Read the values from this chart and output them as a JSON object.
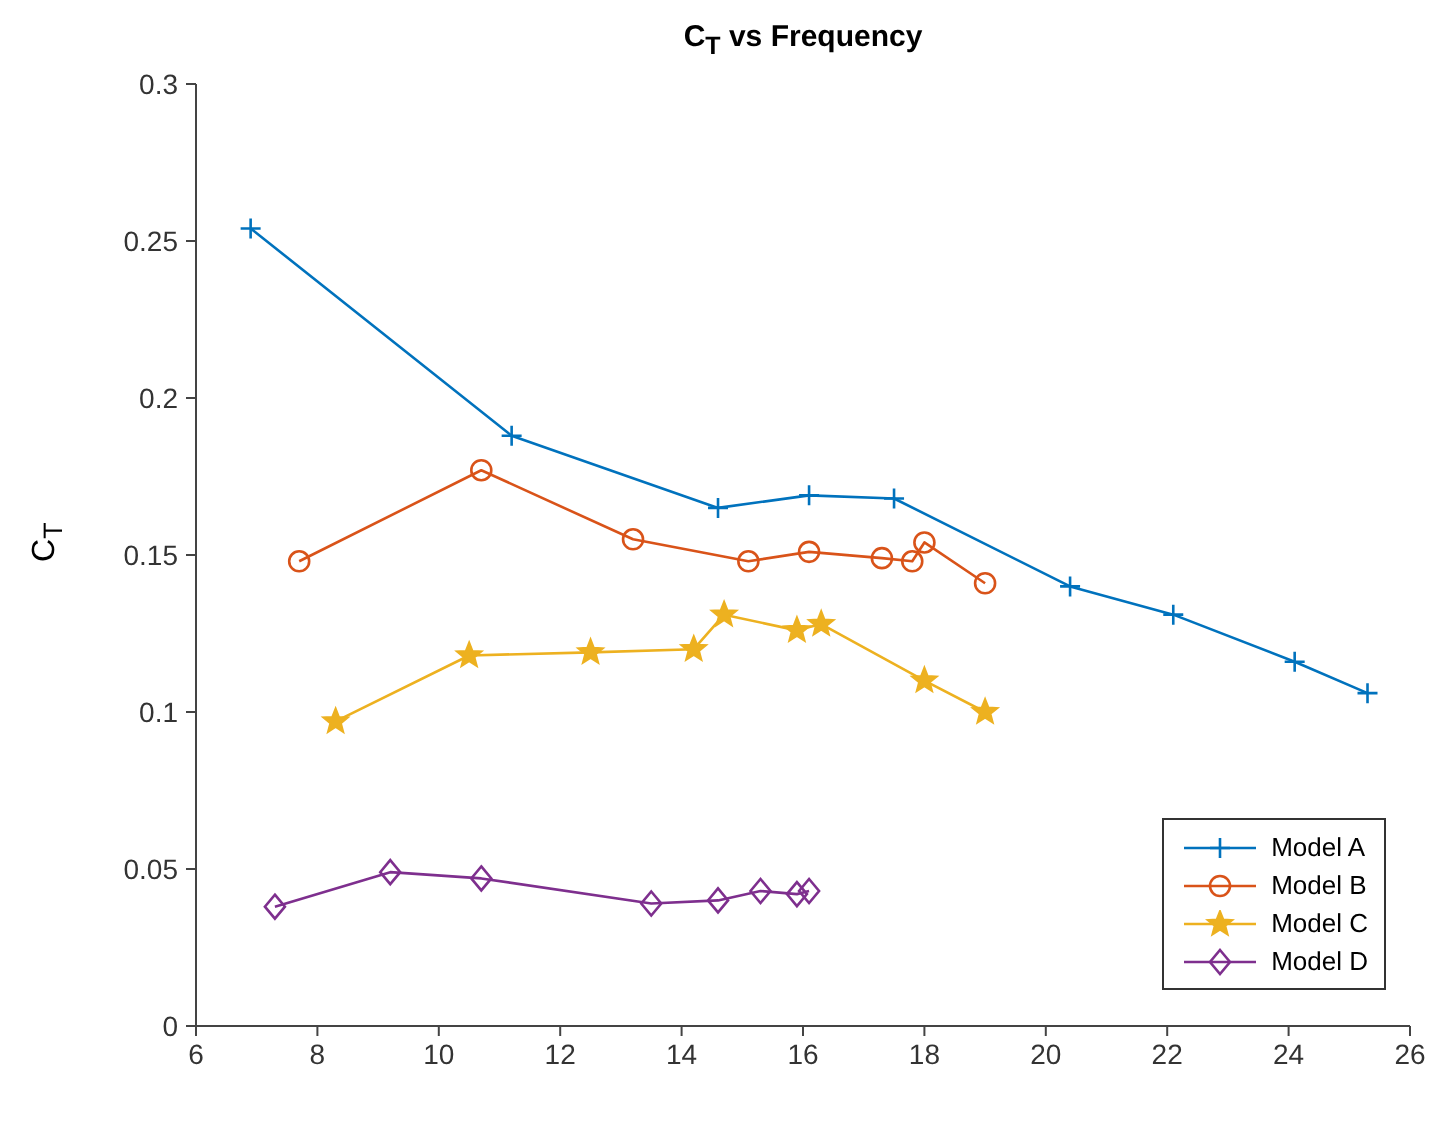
{
  "chart_data": {
    "type": "line",
    "title": "C$_{T}$ vs Frequency",
    "ylabel": "C$_{T}$",
    "xlim": [
      6,
      26
    ],
    "xticks": [
      6,
      8,
      10,
      12,
      14,
      16,
      18,
      20,
      22,
      24,
      26
    ],
    "ylim": [
      0,
      0.3
    ],
    "yticks": [
      0,
      0.05,
      0.1,
      0.15,
      0.2,
      0.25,
      0.3
    ],
    "grid": false,
    "legend": "bottom right",
    "line_style": "solid",
    "series": [
      {
        "name": "Model A",
        "color": "#0072bd",
        "marker": "cross",
        "x": [
          6.9,
          11.2,
          14.6,
          16.1,
          17.5,
          20.4,
          22.1,
          24.1,
          25.3
        ],
        "values": [
          0.254,
          0.188,
          0.165,
          0.169,
          0.168,
          0.14,
          0.131,
          0.116,
          0.106
        ]
      },
      {
        "name": "Model B",
        "color": "#d95319",
        "marker": "circle",
        "x": [
          7.7,
          10.7,
          13.2,
          15.1,
          16.1,
          17.3,
          17.8,
          18.0,
          19.0
        ],
        "values": [
          0.148,
          0.177,
          0.155,
          0.148,
          0.151,
          0.149,
          0.148,
          0.154,
          0.141
        ]
      },
      {
        "name": "Model C",
        "color": "#edb120",
        "marker": "star",
        "x": [
          8.3,
          10.5,
          12.5,
          14.2,
          14.7,
          15.9,
          16.3,
          18.0,
          19.0
        ],
        "values": [
          0.097,
          0.118,
          0.119,
          0.12,
          0.131,
          0.126,
          0.128,
          0.11,
          0.1
        ]
      },
      {
        "name": "Model D",
        "color": "#7e2f8e",
        "marker": "diamond",
        "x": [
          7.3,
          9.2,
          10.7,
          13.5,
          14.6,
          15.3,
          15.9,
          16.1
        ],
        "values": [
          0.038,
          0.049,
          0.047,
          0.039,
          0.04,
          0.043,
          0.042,
          0.043
        ]
      }
    ]
  }
}
